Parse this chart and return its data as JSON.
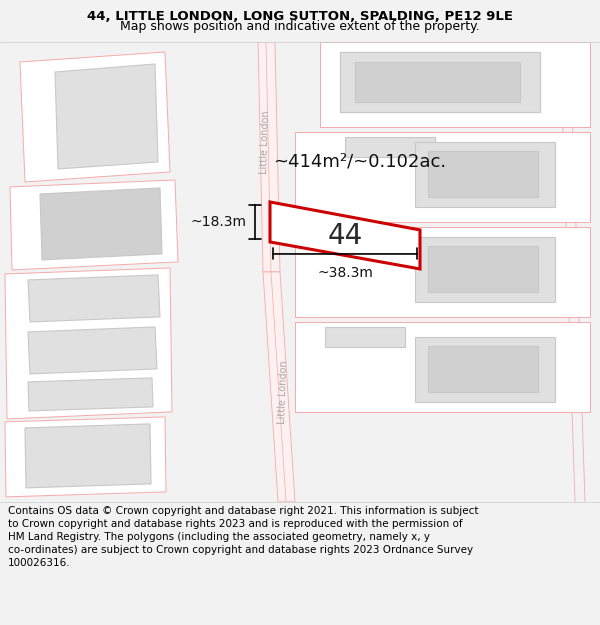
{
  "title_line1": "44, LITTLE LONDON, LONG SUTTON, SPALDING, PE12 9LE",
  "title_line2": "Map shows position and indicative extent of the property.",
  "footer_text": "Contains OS data © Crown copyright and database right 2021. This information is subject to Crown copyright and database rights 2023 and is reproduced with the permission of HM Land Registry. The polygons (including the associated geometry, namely x, y co-ordinates) are subject to Crown copyright and database rights 2023 Ordnance Survey 100026316.",
  "highlight_color": "#cc0000",
  "road_line_color": "#f5aaaa",
  "building_fill": "#e0e0e0",
  "building_inner_fill": "#d0d0d0",
  "building_stroke": "#c8c8c8",
  "road_label_color": "#aaaaaa",
  "annotation_color": "#111111",
  "label_number": "44",
  "area_label": "~414m²/~0.102ac.",
  "width_label": "~38.3m",
  "height_label": "~18.3m",
  "title_fontsize": 9.5,
  "subtitle_fontsize": 9,
  "footer_fontsize": 7.5,
  "label_fontsize": 20,
  "area_fontsize": 13,
  "annot_fontsize": 10
}
